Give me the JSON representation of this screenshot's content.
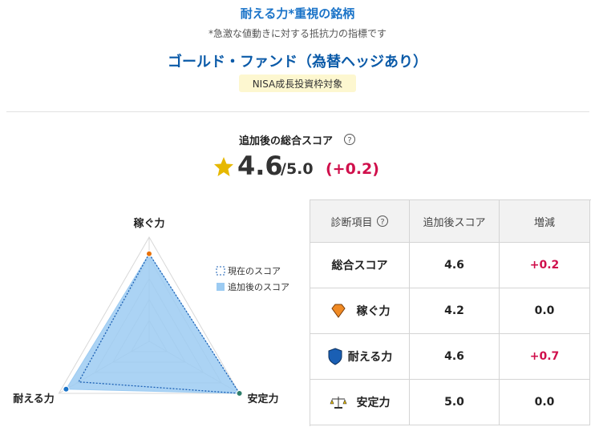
{
  "header": {
    "title": "耐える力*重視の銘柄",
    "note": "*急激な値動きに対する抵抗力の指標です",
    "fund": "ゴールド・ファンド（為替ヘッジあり）",
    "badge": "NISA成長投資枠対象"
  },
  "score": {
    "label": "追加後の総合スコア",
    "value": "4.6",
    "max": "/5.0",
    "change": "(+0.2)"
  },
  "chart_data": {
    "type": "radar",
    "categories": [
      "稼ぐ力",
      "耐える力",
      "安定力"
    ],
    "rlim": [
      0,
      5
    ],
    "rticks": [
      1,
      2,
      3,
      4,
      5
    ],
    "grid": true,
    "point_colors": [
      "#e8710a",
      "#1a73c8",
      "#2e7d6b"
    ],
    "series": [
      {
        "name": "現在のスコア",
        "color": "#1a5fb4",
        "values": [
          4.2,
          3.9,
          5.0
        ]
      },
      {
        "name": "追加後のスコア",
        "color": "#9ccbf2",
        "values": [
          4.2,
          4.6,
          5.0
        ]
      }
    ]
  },
  "table": {
    "header": [
      "診断項目",
      "追加後スコア",
      "増減"
    ],
    "rows": [
      [
        "総合スコア",
        "4.6",
        "+0.2"
      ],
      [
        "稼ぐ力",
        "4.2",
        "0.0"
      ],
      [
        "耐える力",
        "4.6",
        "+0.7"
      ],
      [
        "安定力",
        "5.0",
        "0.0"
      ]
    ]
  }
}
